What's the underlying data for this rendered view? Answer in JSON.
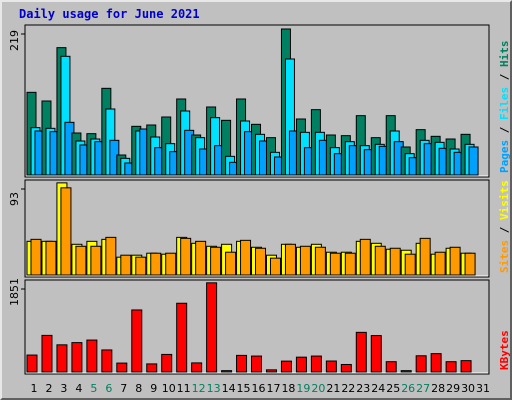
{
  "title": "Daily usage for June 2021",
  "chart_data": [
    {
      "type": "bar",
      "panel": "hits-files-pages",
      "max_label": "219",
      "ylim": [
        0,
        219
      ],
      "grid": false,
      "x": [
        "1",
        "2",
        "3",
        "4",
        "5",
        "6",
        "7",
        "8",
        "9",
        "10",
        "11",
        "12",
        "13",
        "14",
        "15",
        "16",
        "17",
        "18",
        "19",
        "20",
        "21",
        "22",
        "23",
        "24",
        "25",
        "26",
        "27",
        "28",
        "29",
        "30",
        "31"
      ],
      "weekend_days": [
        "5",
        "6",
        "12",
        "13",
        "19",
        "20",
        "26",
        "27"
      ],
      "series": [
        {
          "name": "Hits",
          "color": "#008060",
          "values": [
            124,
            111,
            191,
            63,
            62,
            130,
            30,
            73,
            75,
            87,
            114,
            60,
            102,
            82,
            114,
            76,
            56,
            219,
            84,
            98,
            60,
            59,
            89,
            56,
            89,
            42,
            68,
            58,
            54,
            61,
            0
          ]
        },
        {
          "name": "Files",
          "color": "#00e0ff",
          "values": [
            71,
            70,
            178,
            51,
            54,
            99,
            25,
            66,
            57,
            47,
            96,
            56,
            86,
            28,
            81,
            61,
            34,
            174,
            64,
            64,
            41,
            50,
            44,
            46,
            66,
            32,
            52,
            49,
            39,
            46,
            0
          ]
        },
        {
          "name": "Pages",
          "color": "#00a0ff",
          "values": [
            66,
            65,
            79,
            45,
            50,
            52,
            18,
            69,
            41,
            35,
            67,
            39,
            44,
            19,
            65,
            51,
            27,
            66,
            41,
            52,
            32,
            44,
            38,
            43,
            50,
            26,
            47,
            40,
            34,
            42,
            0
          ]
        }
      ],
      "ylabel_parts": [
        "Pages",
        "Files",
        "Hits"
      ]
    },
    {
      "type": "bar",
      "panel": "visits-sites",
      "max_label": "93",
      "ylim": [
        0,
        93
      ],
      "grid": false,
      "series": [
        {
          "name": "Visits",
          "color": "#ffff00",
          "values": [
            34,
            34,
            93,
            31,
            34,
            36,
            18,
            20,
            22,
            21,
            38,
            32,
            29,
            31,
            34,
            28,
            20,
            31,
            28,
            31,
            23,
            23,
            34,
            32,
            26,
            25,
            32,
            21,
            27,
            22,
            0
          ]
        },
        {
          "name": "Sites",
          "color": "#ff9900",
          "values": [
            36,
            34,
            88,
            29,
            29,
            38,
            20,
            18,
            22,
            22,
            37,
            34,
            28,
            23,
            35,
            27,
            17,
            31,
            29,
            28,
            22,
            22,
            36,
            29,
            27,
            21,
            37,
            23,
            28,
            22,
            0
          ]
        }
      ],
      "ylabel_parts": [
        "Sites",
        "Visits"
      ]
    },
    {
      "type": "bar",
      "panel": "kbytes",
      "max_label": "1851",
      "ylim": [
        0,
        1851
      ],
      "grid": false,
      "series": [
        {
          "name": "KBytes",
          "color": "#ff0000",
          "values": [
            352,
            760,
            564,
            610,
            663,
            458,
            185,
            1288,
            168,
            365,
            1427,
            189,
            1851,
            28,
            345,
            331,
            45,
            226,
            308,
            331,
            228,
            156,
            823,
            756,
            214,
            28,
            337,
            381,
            214,
            236,
            0
          ]
        }
      ],
      "ylabel_parts": [
        "KBytes"
      ]
    }
  ],
  "colors": {
    "background": "#c0c0c0",
    "plot_bg": "#c0c0c0",
    "title": "#0000cc",
    "weekday_label": "#000000",
    "weekend_label": "#008060"
  }
}
